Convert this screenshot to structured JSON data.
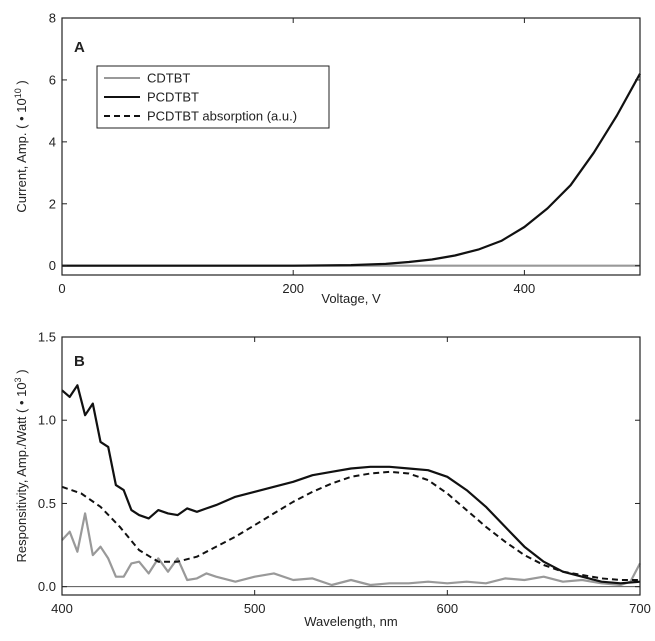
{
  "chart_data": [
    {
      "type": "line",
      "panel_label": "A",
      "xlabel": "Voltage, V",
      "ylabel": "Current, Amp. ( • 10",
      "ylabel_sup": "10",
      "ylabel_close": ")",
      "xlim": [
        0,
        500
      ],
      "ylim": [
        -0.3,
        8
      ],
      "xticks": [
        "0",
        "200",
        "400"
      ],
      "xtick_values": [
        0,
        200,
        400
      ],
      "yticks": [
        "0",
        "2",
        "4",
        "6",
        "8"
      ],
      "ytick_values": [
        0,
        2,
        4,
        6,
        8
      ],
      "grid": false,
      "legend_position": "top-left",
      "series": [
        {
          "name": "CDTBT",
          "color": "#999999",
          "style": "solid",
          "x": [
            0,
            100,
            200,
            300,
            400,
            500
          ],
          "y": [
            0,
            0,
            0,
            0,
            0,
            0
          ]
        },
        {
          "name": "PCDTBT",
          "color": "#111111",
          "style": "solid",
          "x": [
            0,
            100,
            200,
            250,
            280,
            300,
            320,
            340,
            360,
            380,
            400,
            420,
            440,
            460,
            480,
            500
          ],
          "y": [
            0,
            0,
            0,
            0.02,
            0.06,
            0.12,
            0.2,
            0.33,
            0.52,
            0.8,
            1.25,
            1.85,
            2.6,
            3.65,
            4.85,
            6.2
          ]
        }
      ]
    },
    {
      "type": "line",
      "panel_label": "B",
      "xlabel": "Wavelength, nm",
      "ylabel": "Responsitivity, Amp./Watt ( • 10",
      "ylabel_sup": "3",
      "ylabel_close": ")",
      "xlim": [
        400,
        700
      ],
      "ylim": [
        -0.05,
        1.5
      ],
      "xticks": [
        "400",
        "500",
        "600",
        "700"
      ],
      "xtick_values": [
        400,
        500,
        600,
        700
      ],
      "yticks": [
        "0.0",
        "0.5",
        "1.0",
        "1.5"
      ],
      "ytick_values": [
        0.0,
        0.5,
        1.0,
        1.5
      ],
      "grid": false,
      "series": [
        {
          "name": "CDTBT",
          "color": "#999999",
          "style": "solid",
          "x": [
            400,
            404,
            408,
            412,
            416,
            420,
            424,
            428,
            432,
            436,
            440,
            445,
            450,
            455,
            460,
            465,
            470,
            475,
            480,
            490,
            500,
            510,
            520,
            530,
            540,
            550,
            560,
            570,
            580,
            590,
            600,
            610,
            620,
            630,
            640,
            650,
            660,
            670,
            680,
            690,
            695,
            700
          ],
          "y": [
            0.28,
            0.33,
            0.21,
            0.44,
            0.19,
            0.24,
            0.17,
            0.06,
            0.06,
            0.14,
            0.15,
            0.08,
            0.17,
            0.09,
            0.17,
            0.04,
            0.05,
            0.08,
            0.06,
            0.03,
            0.06,
            0.08,
            0.04,
            0.05,
            0.01,
            0.04,
            0.01,
            0.02,
            0.02,
            0.03,
            0.02,
            0.03,
            0.02,
            0.05,
            0.04,
            0.06,
            0.03,
            0.04,
            0.02,
            0.01,
            0.03,
            0.14
          ]
        },
        {
          "name": "PCDTBT",
          "color": "#111111",
          "style": "solid",
          "x": [
            400,
            404,
            408,
            412,
            416,
            420,
            424,
            428,
            432,
            436,
            440,
            445,
            450,
            455,
            460,
            465,
            470,
            475,
            480,
            490,
            500,
            510,
            520,
            530,
            540,
            550,
            560,
            570,
            580,
            590,
            600,
            610,
            620,
            630,
            640,
            650,
            660,
            670,
            680,
            690,
            700
          ],
          "y": [
            1.18,
            1.14,
            1.21,
            1.03,
            1.1,
            0.87,
            0.84,
            0.61,
            0.58,
            0.46,
            0.43,
            0.41,
            0.46,
            0.44,
            0.43,
            0.47,
            0.45,
            0.47,
            0.49,
            0.54,
            0.57,
            0.6,
            0.63,
            0.67,
            0.69,
            0.71,
            0.72,
            0.72,
            0.71,
            0.7,
            0.66,
            0.58,
            0.48,
            0.36,
            0.24,
            0.15,
            0.09,
            0.06,
            0.03,
            0.02,
            0.03
          ]
        },
        {
          "name": "PCDTBT absorption (a.u.)",
          "color": "#111111",
          "style": "dashed",
          "x": [
            400,
            410,
            420,
            430,
            440,
            450,
            460,
            470,
            480,
            490,
            500,
            510,
            520,
            530,
            540,
            550,
            560,
            570,
            580,
            590,
            600,
            610,
            620,
            630,
            640,
            650,
            660,
            670,
            680,
            690,
            700
          ],
          "y": [
            0.6,
            0.56,
            0.48,
            0.36,
            0.22,
            0.15,
            0.15,
            0.18,
            0.24,
            0.3,
            0.37,
            0.44,
            0.51,
            0.57,
            0.62,
            0.66,
            0.68,
            0.69,
            0.68,
            0.64,
            0.56,
            0.46,
            0.36,
            0.27,
            0.19,
            0.13,
            0.09,
            0.07,
            0.05,
            0.04,
            0.04
          ]
        }
      ]
    }
  ]
}
